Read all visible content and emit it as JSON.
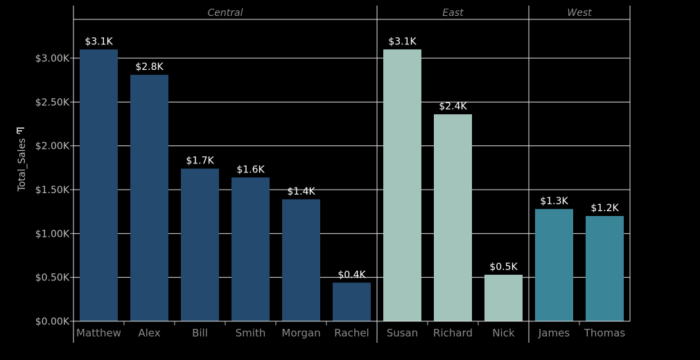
{
  "chart_data": {
    "type": "bar",
    "ylabel": "Total_Sales",
    "ylim": [
      0,
      3.4
    ],
    "yunit": "thousands USD",
    "yticks": [
      {
        "value": 0.0,
        "label": "$0.00K"
      },
      {
        "value": 0.5,
        "label": "$0.50K"
      },
      {
        "value": 1.0,
        "label": "$1.00K"
      },
      {
        "value": 1.5,
        "label": "$1.50K"
      },
      {
        "value": 2.0,
        "label": "$2.00K"
      },
      {
        "value": 2.5,
        "label": "$2.50K"
      },
      {
        "value": 3.0,
        "label": "$3.00K"
      }
    ],
    "grid": true,
    "groups": [
      {
        "name": "Central",
        "color": "#244a70",
        "bars": [
          {
            "category": "Matthew",
            "value": 3.1,
            "label": "$3.1K"
          },
          {
            "category": "Alex",
            "value": 2.81,
            "label": "$2.8K"
          },
          {
            "category": "Bill",
            "value": 1.74,
            "label": "$1.7K"
          },
          {
            "category": "Smith",
            "value": 1.64,
            "label": "$1.6K"
          },
          {
            "category": "Morgan",
            "value": 1.39,
            "label": "$1.4K"
          },
          {
            "category": "Rachel",
            "value": 0.44,
            "label": "$0.4K"
          }
        ]
      },
      {
        "name": "East",
        "color": "#a2c4ba",
        "bars": [
          {
            "category": "Susan",
            "value": 3.1,
            "label": "$3.1K"
          },
          {
            "category": "Richard",
            "value": 2.36,
            "label": "$2.4K"
          },
          {
            "category": "Nick",
            "value": 0.53,
            "label": "$0.5K"
          }
        ]
      },
      {
        "name": "West",
        "color": "#3a8598",
        "bars": [
          {
            "category": "James",
            "value": 1.28,
            "label": "$1.3K"
          },
          {
            "category": "Thomas",
            "value": 1.2,
            "label": "$1.2K"
          }
        ]
      }
    ],
    "colors": {
      "background": "#000000",
      "grid": "#e6e6e6",
      "axis_text": "#bdbdbd",
      "category_text": "#8a8a8a",
      "group_text": "#8a8a8a",
      "data_label": "#ffffff"
    }
  }
}
